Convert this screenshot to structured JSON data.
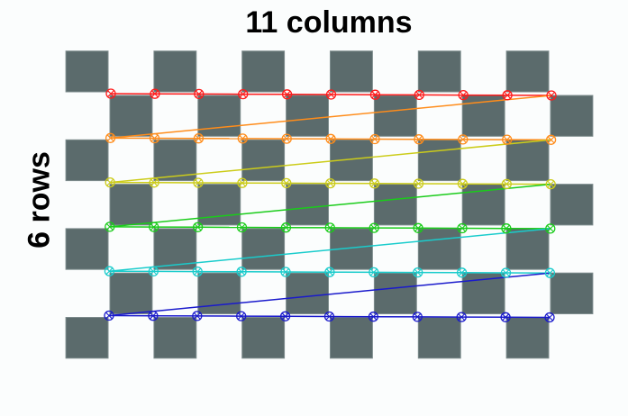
{
  "labels": {
    "columns": "11 columns",
    "rows": "6 rows"
  },
  "pattern": {
    "corner_columns": 11,
    "corner_rows": 6
  },
  "row_colors": [
    "#ff1a1a",
    "#ff8c1a",
    "#cccc1a",
    "#1acc1a",
    "#1acccc",
    "#1a1acc"
  ],
  "square_color": "#5b6b6c"
}
